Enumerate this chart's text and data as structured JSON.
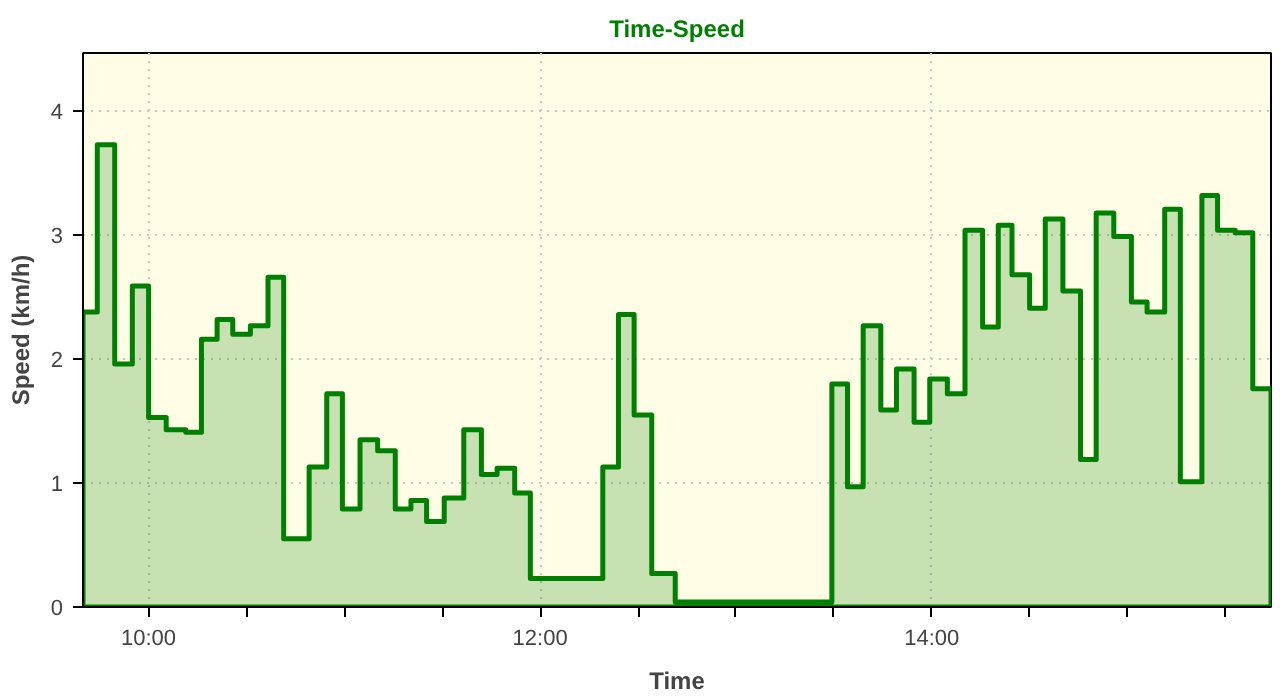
{
  "chart_data": {
    "type": "area",
    "title": "Time-Speed",
    "xlabel": "Time",
    "ylabel": "Speed (km/h)",
    "xlim": [
      9.665,
      15.733
    ],
    "ylim": [
      0,
      4.47
    ],
    "xticks": [
      {
        "value": 10,
        "label": "10:00"
      },
      {
        "value": 10.5,
        "label": null
      },
      {
        "value": 11,
        "label": null
      },
      {
        "value": 11.5,
        "label": null
      },
      {
        "value": 12,
        "label": "12:00"
      },
      {
        "value": 12.5,
        "label": null
      },
      {
        "value": 13,
        "label": null
      },
      {
        "value": 13.5,
        "label": null
      },
      {
        "value": 14,
        "label": "14:00"
      },
      {
        "value": 14.5,
        "label": null
      },
      {
        "value": 15,
        "label": null
      },
      {
        "value": 15.5,
        "label": null
      }
    ],
    "yticks": [
      0,
      1,
      2,
      3,
      4
    ],
    "grid": true,
    "marker": "none",
    "line_style": "solid",
    "series": [
      {
        "color": "#008000",
        "x": [
          9.665,
          9.738,
          9.827,
          9.917,
          10.0,
          10.09,
          10.19,
          10.27,
          10.35,
          10.43,
          10.52,
          10.61,
          10.69,
          10.82,
          10.91,
          10.99,
          11.08,
          11.17,
          11.26,
          11.34,
          11.42,
          11.51,
          11.61,
          11.7,
          11.78,
          11.87,
          11.95,
          12.32,
          12.4,
          12.48,
          12.57,
          12.69,
          13.49,
          13.57,
          13.65,
          13.74,
          13.82,
          13.91,
          13.99,
          14.08,
          14.17,
          14.26,
          14.34,
          14.41,
          14.5,
          14.58,
          14.67,
          14.76,
          14.84,
          14.93,
          15.02,
          15.1,
          15.19,
          15.27,
          15.38,
          15.46,
          15.55,
          15.64,
          15.733
        ],
        "values": [
          2.38,
          3.73,
          1.96,
          2.59,
          1.53,
          1.43,
          1.41,
          2.16,
          2.32,
          2.2,
          2.27,
          2.66,
          0.55,
          1.13,
          1.72,
          0.79,
          1.35,
          1.26,
          0.79,
          0.86,
          0.69,
          0.88,
          1.43,
          1.07,
          1.12,
          0.92,
          0.23,
          1.13,
          2.36,
          1.55,
          0.27,
          0.04,
          1.8,
          0.97,
          2.27,
          1.59,
          1.92,
          1.49,
          1.84,
          1.72,
          3.04,
          2.26,
          3.08,
          2.68,
          2.41,
          3.13,
          2.55,
          1.19,
          3.18,
          2.99,
          2.46,
          2.38,
          3.21,
          1.01,
          3.32,
          3.04,
          3.02,
          1.76,
          1.76
        ]
      }
    ]
  }
}
